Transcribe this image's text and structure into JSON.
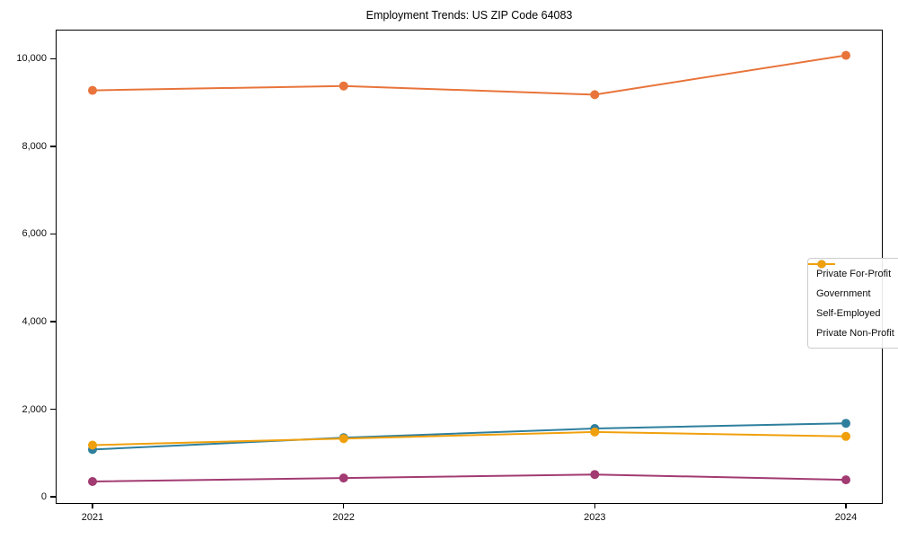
{
  "window": {
    "background_color": "#ffffff",
    "axis_color": "#000000",
    "text_color": "#0d0d0d"
  },
  "chart_data": {
    "type": "line",
    "title": "Employment Trends: US ZIP Code 64083",
    "xlabel": "",
    "ylabel": "",
    "grid": false,
    "legend_position": "center-right",
    "categories": [
      "2021",
      "2022",
      "2023",
      "2024"
    ],
    "series": [
      {
        "name": "Private For-Profit",
        "color": "#e8743b",
        "values": [
          9300,
          9400,
          9200,
          10100
        ]
      },
      {
        "name": "Government",
        "color": "#2e7f9d",
        "values": [
          1100,
          1370,
          1580,
          1700
        ]
      },
      {
        "name": "Self-Employed",
        "color": "#a23b72",
        "values": [
          370,
          450,
          530,
          410
        ]
      },
      {
        "name": "Private Non-Profit",
        "color": "#f0a00c",
        "values": [
          1200,
          1350,
          1500,
          1400
        ]
      }
    ],
    "yticks": [
      0,
      2000,
      4000,
      6000,
      8000,
      10000
    ],
    "ytick_labels": [
      "0",
      "2,000",
      "4,000",
      "6,000",
      "8,000",
      "10,000"
    ],
    "ylim": [
      -122,
      10665
    ],
    "marker": "circle",
    "marker_radius": 5,
    "line_width": 2
  }
}
